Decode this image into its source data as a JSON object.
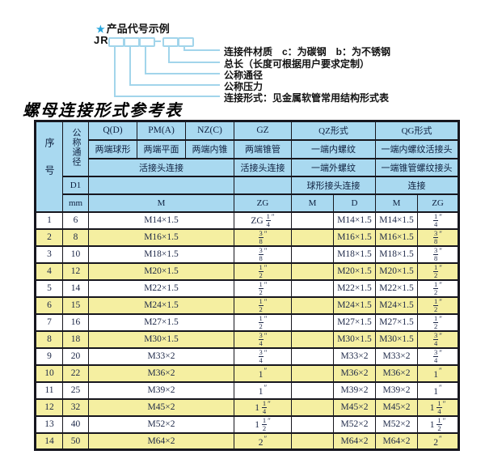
{
  "diagram": {
    "star_icon": "★",
    "heading": "产品代号示例",
    "prefix": "JR",
    "labels": [
      "连接件材质　c：为碳钢　b：为不锈钢",
      "总长（长度可根据用户要求定制）",
      "公称通径",
      "公称压力",
      "连接形式：见金属软管常用结构形式表"
    ]
  },
  "table": {
    "title": "螺母连接形式参考表",
    "header": {
      "seq": "序号",
      "dn": "公称通径",
      "d1": "D1",
      "mm": "mm",
      "q_code": "Q(D)",
      "pm_code": "PM(A)",
      "nz_code": "NZ(C)",
      "gz_code": "GZ",
      "qz_code": "QZ形式",
      "qg_code": "QG形式",
      "q_desc": "两端球形",
      "pm_desc": "两端平面",
      "nz_desc": "两端内锥",
      "gz_desc": "两端锥管",
      "qz_desc1": "一端内螺纹",
      "qg_desc1": "一端内螺纹活接头",
      "qpn_conn": "活接头连接",
      "gz_conn": "活接头连接",
      "qz_desc2": "一端外螺纹",
      "qg_desc2": "一端锥管螺纹接头",
      "qz_conn": "球形接头连接",
      "qg_conn": "连接",
      "m_unit": "M",
      "gz_unit": "ZG",
      "qz_m_unit": "M",
      "qz_d_unit": "D",
      "qg_m_unit": "M",
      "qg_zg_unit": "ZG"
    },
    "rows": [
      [
        "1",
        "6",
        "M14×1.5",
        "ZG 1/4″",
        "",
        "M14×1.5",
        "M14×1.5",
        "1/4″"
      ],
      [
        "2",
        "8",
        "M16×1.5",
        "3/8″",
        "",
        "M16×1.5",
        "M16×1.5",
        "3/8″"
      ],
      [
        "3",
        "10",
        "M18×1.5",
        "3/8″",
        "",
        "M18×1.5",
        "M18×1.5",
        "3/8″"
      ],
      [
        "4",
        "12",
        "M20×1.5",
        "1/2″",
        "",
        "M20×1.5",
        "M20×1.5",
        "1/2″"
      ],
      [
        "5",
        "14",
        "M22×1.5",
        "1/2″",
        "",
        "M22×1.5",
        "M22×1.5",
        "1/2″"
      ],
      [
        "6",
        "15",
        "M24×1.5",
        "1/2″",
        "",
        "M24×1.5",
        "M24×1.5",
        "1/2″"
      ],
      [
        "7",
        "16",
        "M27×1.5",
        "1/2″",
        "",
        "M27×1.5",
        "M27×1.5",
        "1/2″"
      ],
      [
        "8",
        "18",
        "M30×1.5",
        "3/4″",
        "",
        "M30×1.5",
        "M30×1.5",
        "3/4″"
      ],
      [
        "9",
        "20",
        "M33×2",
        "3/4″",
        "",
        "M33×2",
        "M33×2",
        "3/4″"
      ],
      [
        "10",
        "22",
        "M36×2",
        "1″",
        "",
        "M36×2",
        "M36×2",
        "1″"
      ],
      [
        "11",
        "25",
        "M39×2",
        "1″",
        "",
        "M39×2",
        "M39×2",
        "1″"
      ],
      [
        "12",
        "32",
        "M45×2",
        "1 1/4″",
        "",
        "M45×2",
        "M45×2",
        "1 1/4″"
      ],
      [
        "13",
        "40",
        "M52×2",
        "1 1/2″",
        "",
        "M52×2",
        "M52×2",
        "1 1/2″"
      ],
      [
        "14",
        "50",
        "M64×2",
        "2″",
        "",
        "M64×2",
        "M64×2",
        "2″"
      ]
    ]
  },
  "colors": {
    "header_bg": "#a9d9f0",
    "row_yellow": "#f5efa1",
    "row_white": "#ffffff",
    "border": "#16161e",
    "star_blue": "#2aa7dd",
    "diagram_line_blue": "#a2d5eb",
    "table_text": "#1c2747"
  }
}
